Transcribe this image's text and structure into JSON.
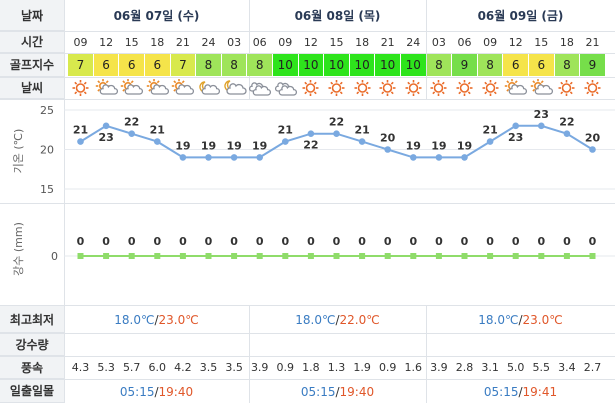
{
  "labels": {
    "date": "날짜",
    "time": "시간",
    "golf_index": "골프지수",
    "weather": "날씨",
    "minmax": "최고최저",
    "precip": "강수량",
    "wind": "풍속",
    "sun": "일출일몰"
  },
  "days": [
    "06월 07일 (수)",
    "06월 08일 (목)",
    "06월 09일 (금)"
  ],
  "times": [
    "09",
    "12",
    "15",
    "18",
    "21",
    "24",
    "03",
    "06",
    "09",
    "12",
    "15",
    "18",
    "21",
    "24",
    "03",
    "06",
    "09",
    "12",
    "15",
    "18",
    "21"
  ],
  "golf": [
    7,
    6,
    6,
    6,
    7,
    8,
    8,
    8,
    10,
    10,
    10,
    10,
    10,
    10,
    8,
    9,
    8,
    6,
    6,
    8,
    9
  ],
  "golf_colors": {
    "6": "#f5e44a",
    "7": "#d8e94d",
    "8": "#9fe45a",
    "9": "#76de4a",
    "10": "#2ee41c"
  },
  "weather_icons": [
    "sun-icon",
    "partly-cloudy-icon",
    "partly-cloudy-icon",
    "partly-cloudy-icon",
    "partly-cloudy-icon",
    "partly-cloudy-night-icon",
    "cloudy-night-icon",
    "cloudy-icon",
    "cloudy-icon",
    "sun-icon",
    "sun-icon",
    "sun-icon",
    "sun-icon",
    "sun-icon",
    "sun-icon",
    "sun-icon",
    "sun-icon",
    "partly-cloudy-icon",
    "partly-cloudy-icon",
    "sun-icon",
    "sun-icon"
  ],
  "chart_data": [
    {
      "type": "line",
      "ylabel": "기온 (℃)",
      "x": [
        "09",
        "12",
        "15",
        "18",
        "21",
        "24",
        "03",
        "06",
        "09",
        "12",
        "15",
        "18",
        "21",
        "24",
        "03",
        "06",
        "09",
        "12",
        "15",
        "18",
        "21"
      ],
      "values": [
        21,
        23,
        22,
        21,
        19,
        19,
        19,
        19,
        21,
        22,
        22,
        21,
        20,
        19,
        19,
        19,
        21,
        23,
        23,
        22,
        20
      ],
      "ylim": [
        15,
        25
      ],
      "yticks": [
        15,
        20,
        25
      ],
      "color": "#7aa9e0"
    },
    {
      "type": "line",
      "ylabel": "강수 (mm)",
      "x": [
        "09",
        "12",
        "15",
        "18",
        "21",
        "24",
        "03",
        "06",
        "09",
        "12",
        "15",
        "18",
        "21",
        "24",
        "03",
        "06",
        "09",
        "12",
        "15",
        "18",
        "21"
      ],
      "values": [
        0,
        0,
        0,
        0,
        0,
        0,
        0,
        0,
        0,
        0,
        0,
        0,
        0,
        0,
        0,
        0,
        0,
        0,
        0,
        0,
        0
      ],
      "yticks": [
        0
      ],
      "color": "#8fdc6a"
    }
  ],
  "minmax": [
    {
      "min": "18.0℃",
      "sep": "/",
      "max": "23.0℃"
    },
    {
      "min": "18.0℃",
      "sep": "/",
      "max": "22.0℃"
    },
    {
      "min": "18.0℃",
      "sep": "/",
      "max": "23.0℃"
    }
  ],
  "precip_total": [
    "",
    "",
    ""
  ],
  "wind": [
    "4.3",
    "5.3",
    "5.7",
    "6.0",
    "4.2",
    "3.5",
    "3.5",
    "3.9",
    "0.9",
    "1.8",
    "1.3",
    "1.9",
    "0.9",
    "1.6",
    "3.9",
    "2.8",
    "3.1",
    "5.0",
    "5.5",
    "3.4",
    "2.7"
  ],
  "sun": [
    {
      "rise": "05:15",
      "sep": "/",
      "set": "19:40"
    },
    {
      "rise": "05:15",
      "sep": "/",
      "set": "19:40"
    },
    {
      "rise": "05:15",
      "sep": "/",
      "set": "19:41"
    }
  ],
  "colors": {
    "red": "#e0572a",
    "blue": "#3a7cc2",
    "header_bg": "#f1f3f5",
    "border": "#dfe3e8"
  }
}
